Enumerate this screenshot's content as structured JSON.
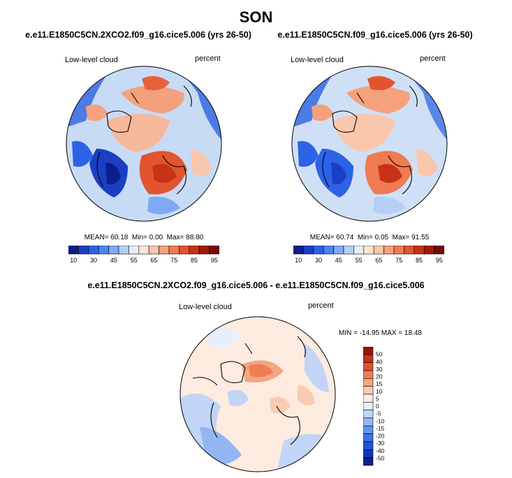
{
  "page": {
    "title": "SON"
  },
  "panels": [
    {
      "title": "e.e11.E1850C5CN.2XCO2.f09_g16.cice5.006 (yrs 26-50)",
      "variable": "Low-level cloud",
      "units": "percent",
      "stats": {
        "mean_label": "MEAN=",
        "mean": "60.18",
        "min_label": "Min=",
        "min": "0.00",
        "max_label": "Max=",
        "max": "88.80"
      }
    },
    {
      "title": "e.e11.E1850C5CN.f09_g16.cice5.006 (yrs 26-50)",
      "variable": "Low-level cloud",
      "units": "percent",
      "stats": {
        "mean_label": "MEAN=",
        "mean": "60.74",
        "min_label": "Min=",
        "min": "0.05",
        "max_label": "Max=",
        "max": "91.55"
      }
    },
    {
      "title": "e.e11.E1850C5CN.2XCO2.f09_g16.cice5.006 - e.e11.E1850C5CN.f09_g16.cice5.006",
      "variable": "Low-level cloud",
      "units": "percent",
      "minmax": "MIN = -14.95 MAX =  18.48"
    }
  ],
  "colorbar_main": {
    "colors": [
      "#0a1f8a",
      "#1a3fc4",
      "#2c62e6",
      "#4a86f0",
      "#7fa9f2",
      "#b5cff5",
      "#e4eefa",
      "#fde6d6",
      "#f9c7ac",
      "#f5a17d",
      "#ef7b52",
      "#e2542e",
      "#c83216",
      "#a11a08",
      "#7a0a04"
    ],
    "ticks": [
      "10",
      "30",
      "45",
      "55",
      "65",
      "75",
      "85",
      "95"
    ]
  },
  "colorbar_diff": {
    "colors": [
      "#0a1f8a",
      "#1536b8",
      "#2152d6",
      "#3a72ea",
      "#6296f0",
      "#93b5f2",
      "#c2d5f6",
      "#e8effa",
      "#fdebe0",
      "#f9cbb2",
      "#f4a582",
      "#ee7c55",
      "#e0542e",
      "#c3321a",
      "#9a1408"
    ],
    "ticks": [
      "50",
      "40",
      "30",
      "20",
      "15",
      "10",
      "5",
      "0",
      "-5",
      "-10",
      "-15",
      "-20",
      "-30",
      "-40",
      "-50"
    ]
  }
}
